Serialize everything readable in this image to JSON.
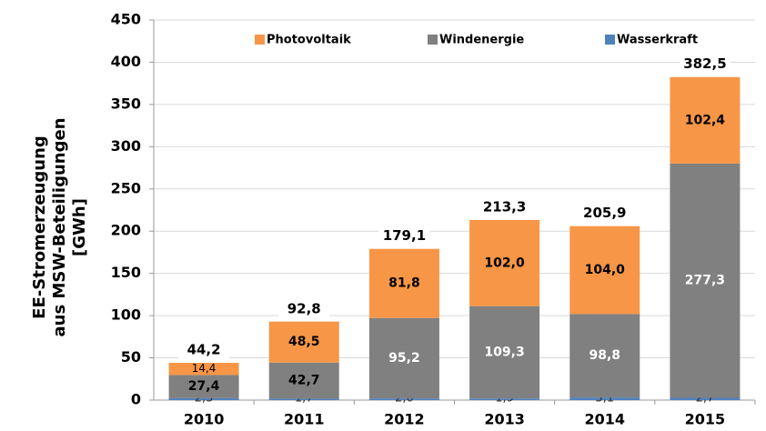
{
  "chart_data": {
    "type": "stacked_bar",
    "y_axis_label": [
      "EE-Stromerzeugung",
      "aus MSW-Beteiligungen",
      "[GWh]"
    ],
    "categories": [
      "2010",
      "2011",
      "2012",
      "2013",
      "2014",
      "2015"
    ],
    "series": [
      {
        "name": "Wasserkraft",
        "color": "#4f81bd",
        "values": [
          2.3,
          1.7,
          2.0,
          1.9,
          3.1,
          2.7
        ],
        "value_labels": [
          "2,3",
          "1,7",
          "2,0",
          "1,9",
          "3,1",
          "2,7"
        ]
      },
      {
        "name": "Windenergie",
        "color": "#808080",
        "values": [
          27.4,
          42.7,
          95.2,
          109.3,
          98.8,
          277.3
        ],
        "value_labels": [
          "27,4",
          "42,7",
          "95,2",
          "109,3",
          "98,8",
          "277,3"
        ]
      },
      {
        "name": "Photovoltaik",
        "color": "#f79646",
        "values": [
          14.4,
          48.5,
          81.8,
          102.0,
          104.0,
          102.4
        ],
        "value_labels": [
          "14,4",
          "48,5",
          "81,8",
          "102,0",
          "104,0",
          "102,4"
        ]
      }
    ],
    "totals": {
      "values": [
        44.2,
        92.8,
        179.1,
        213.3,
        205.9,
        382.5
      ],
      "value_labels": [
        "44,2",
        "92,8",
        "179,1",
        "213,3",
        "205,9",
        "382,5"
      ]
    },
    "legend_order": [
      2,
      1,
      0
    ],
    "ylim": [
      0,
      450
    ],
    "yticks": [
      0,
      50,
      100,
      150,
      200,
      250,
      300,
      350,
      400,
      450
    ],
    "grid": true
  }
}
